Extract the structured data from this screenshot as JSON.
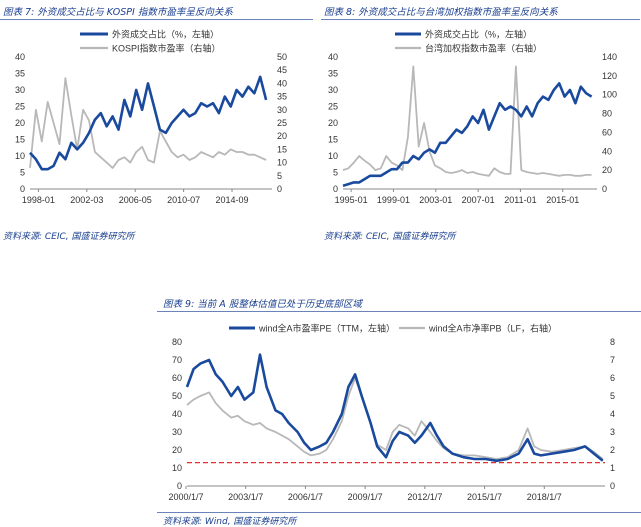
{
  "chart_data": [
    {
      "type": "line",
      "caption": "图表 7:  外资成交占比与 KOSPI 指数市盈率呈反向关系",
      "source": "资料来源:  CEIC,  国盛证券研究所",
      "xlabel": "",
      "ylabel": "",
      "x_ticks": [
        "1998-01",
        "2002-03",
        "2006-05",
        "2010-07",
        "2014-09"
      ],
      "x_range": [
        1998.0,
        2018.5
      ],
      "y_left_ticks": [
        "0",
        "5",
        "10",
        "15",
        "20",
        "25",
        "30",
        "35",
        "40"
      ],
      "y_left_range": [
        0,
        40
      ],
      "y_right_ticks": [
        "0",
        "5",
        "10",
        "15",
        "20",
        "25",
        "30",
        "35",
        "40",
        "45",
        "50"
      ],
      "y_right_range": [
        0,
        50
      ],
      "legend_position": "top-center",
      "series": [
        {
          "name": "外资成交占比（%，左轴）",
          "axis": "left",
          "color": "#1a4a9e",
          "x": [
            1998.0,
            1998.5,
            1999.0,
            1999.5,
            2000.0,
            2000.5,
            2001.0,
            2001.5,
            2002.0,
            2002.5,
            2003.0,
            2003.5,
            2004.0,
            2004.5,
            2005.0,
            2005.5,
            2006.0,
            2006.5,
            2007.0,
            2007.5,
            2008.0,
            2008.5,
            2009.0,
            2009.5,
            2010.0,
            2010.5,
            2011.0,
            2011.5,
            2012.0,
            2012.5,
            2013.0,
            2013.5,
            2014.0,
            2014.5,
            2015.0,
            2015.5,
            2016.0,
            2016.5,
            2017.0,
            2017.5,
            2018.0
          ],
          "y": [
            11,
            9,
            6,
            6,
            7,
            11,
            9,
            14,
            12,
            14,
            17,
            21,
            23,
            19,
            22,
            18,
            27,
            22,
            30,
            24,
            32,
            25,
            18,
            17,
            20,
            22,
            24,
            22,
            23,
            26,
            25,
            26,
            23,
            28,
            25,
            30,
            28,
            31,
            29,
            34,
            27
          ]
        },
        {
          "name": "KOSPI指数市盈率（右轴）",
          "axis": "right",
          "color": "#b8b8b8",
          "x": [
            1998.0,
            1998.5,
            1999.0,
            1999.5,
            2000.0,
            2000.5,
            2001.0,
            2001.5,
            2002.0,
            2002.5,
            2003.0,
            2003.5,
            2004.0,
            2004.5,
            2005.0,
            2005.5,
            2006.0,
            2006.5,
            2007.0,
            2007.5,
            2008.0,
            2008.5,
            2009.0,
            2009.5,
            2010.0,
            2010.5,
            2011.0,
            2011.5,
            2012.0,
            2012.5,
            2013.0,
            2013.5,
            2014.0,
            2014.5,
            2015.0,
            2015.5,
            2016.0,
            2016.5,
            2017.0,
            2017.5,
            2018.0
          ],
          "y": [
            8,
            30,
            18,
            33,
            25,
            17,
            42,
            28,
            15,
            30,
            26,
            14,
            12,
            10,
            8,
            11,
            12,
            10,
            14,
            16,
            11,
            10,
            22,
            18,
            14,
            12,
            13,
            11,
            12,
            14,
            13,
            12,
            14,
            13,
            15,
            14,
            14,
            13,
            13,
            12,
            11
          ]
        }
      ]
    },
    {
      "type": "line",
      "caption": "图表 8:  外资成交占比与台湾加权指数市盈率呈反向关系",
      "source": "资料来源:  CEIC,  国盛证券研究所",
      "xlabel": "",
      "ylabel": "",
      "x_ticks": [
        "1995-01",
        "1999-01",
        "2003-01",
        "2007-01",
        "2011-01",
        "2015-01"
      ],
      "x_range": [
        1995.0,
        2018.5
      ],
      "y_left_ticks": [
        "0",
        "5",
        "10",
        "15",
        "20",
        "25",
        "30",
        "35",
        "40"
      ],
      "y_left_range": [
        0,
        40
      ],
      "y_right_ticks": [
        "0",
        "20",
        "40",
        "60",
        "80",
        "100",
        "120",
        "140"
      ],
      "y_right_range": [
        0,
        140
      ],
      "legend_position": "top-center",
      "series": [
        {
          "name": "外资成交占比（%，左轴）",
          "axis": "left",
          "color": "#1a4a9e",
          "x": [
            1995.0,
            1995.5,
            1996.0,
            1996.5,
            1997.0,
            1997.5,
            1998.0,
            1998.5,
            1999.0,
            1999.5,
            2000.0,
            2000.5,
            2001.0,
            2001.5,
            2002.0,
            2002.5,
            2003.0,
            2003.5,
            2004.0,
            2004.5,
            2005.0,
            2005.5,
            2006.0,
            2006.5,
            2007.0,
            2007.5,
            2008.0,
            2008.5,
            2009.0,
            2009.5,
            2010.0,
            2010.5,
            2011.0,
            2011.5,
            2012.0,
            2012.5,
            2013.0,
            2013.5,
            2014.0,
            2014.5,
            2015.0,
            2015.5,
            2016.0,
            2016.5,
            2017.0,
            2017.5,
            2018.0
          ],
          "y": [
            1,
            1.5,
            2,
            2,
            3,
            4,
            4,
            4,
            5,
            6,
            6,
            8,
            8,
            10,
            9,
            11,
            12,
            11,
            14,
            14,
            16,
            18,
            17,
            19,
            22,
            20,
            24,
            18,
            22,
            26,
            24,
            25,
            24,
            22,
            25,
            22,
            26,
            28,
            27,
            30,
            32,
            28,
            30,
            26,
            31,
            29,
            28
          ]
        },
        {
          "name": "台湾加权指数市盈率（右轴）",
          "axis": "right",
          "color": "#b8b8b8",
          "x": [
            1995.0,
            1995.5,
            1996.0,
            1996.5,
            1997.0,
            1997.5,
            1998.0,
            1998.5,
            1999.0,
            1999.5,
            2000.0,
            2000.5,
            2001.0,
            2001.5,
            2002.0,
            2002.5,
            2003.0,
            2003.5,
            2004.0,
            2004.5,
            2005.0,
            2005.5,
            2006.0,
            2006.5,
            2007.0,
            2007.5,
            2008.0,
            2008.5,
            2009.0,
            2009.5,
            2010.0,
            2010.5,
            2011.0,
            2011.5,
            2012.0,
            2012.5,
            2013.0,
            2013.5,
            2014.0,
            2014.5,
            2015.0,
            2015.5,
            2016.0,
            2016.5,
            2017.0,
            2017.5,
            2018.0
          ],
          "y": [
            20,
            22,
            28,
            35,
            30,
            26,
            20,
            22,
            35,
            28,
            25,
            20,
            55,
            130,
            45,
            70,
            40,
            25,
            22,
            18,
            17,
            18,
            20,
            17,
            18,
            16,
            15,
            14,
            22,
            18,
            16,
            16,
            130,
            20,
            18,
            17,
            16,
            17,
            16,
            15,
            14,
            15,
            15,
            14,
            14,
            15,
            15
          ]
        }
      ]
    },
    {
      "type": "line",
      "caption": "图表 9:  当前 A 股整体估值已处于历史底部区域",
      "source": "资料来源:  Wind,  国盛证券研究所",
      "xlabel": "",
      "ylabel": "",
      "x_ticks": [
        "2000/1/7",
        "2003/1/7",
        "2006/1/7",
        "2009/1/7",
        "2012/1/7",
        "2015/1/7",
        "2018/1/7"
      ],
      "x_range": [
        2000.0,
        2018.9
      ],
      "y_left_ticks": [
        "0",
        "10",
        "20",
        "30",
        "40",
        "50",
        "60",
        "70",
        "80"
      ],
      "y_left_range": [
        0,
        80
      ],
      "y_right_ticks": [
        "0",
        "1",
        "2",
        "3",
        "4",
        "5",
        "6",
        "7",
        "8"
      ],
      "y_right_range": [
        0,
        8
      ],
      "reference_line": {
        "axis": "left",
        "y": 13,
        "color": "#e03030",
        "style": "dashed"
      },
      "legend_position": "top-center",
      "series": [
        {
          "name": "wind全A市盈率PE（TTM，左轴）",
          "axis": "left",
          "color": "#1a4a9e",
          "x": [
            2000.0,
            2000.3,
            2000.6,
            2001.0,
            2001.3,
            2001.6,
            2002.0,
            2002.3,
            2002.6,
            2003.0,
            2003.3,
            2003.6,
            2004.0,
            2004.3,
            2004.6,
            2005.0,
            2005.3,
            2005.6,
            2006.0,
            2006.3,
            2006.6,
            2007.0,
            2007.3,
            2007.6,
            2007.9,
            2008.3,
            2008.6,
            2009.0,
            2009.3,
            2009.6,
            2010.0,
            2010.3,
            2010.6,
            2011.0,
            2011.3,
            2011.6,
            2012.0,
            2012.5,
            2013.0,
            2013.5,
            2014.0,
            2014.5,
            2015.0,
            2015.4,
            2015.7,
            2016.0,
            2016.5,
            2017.0,
            2017.5,
            2018.0,
            2018.4,
            2018.8
          ],
          "y": [
            55,
            65,
            68,
            70,
            62,
            58,
            50,
            55,
            48,
            52,
            73,
            55,
            42,
            40,
            35,
            30,
            24,
            20,
            22,
            24,
            30,
            40,
            55,
            62,
            50,
            35,
            22,
            16,
            25,
            30,
            28,
            24,
            28,
            35,
            28,
            22,
            18,
            16,
            15,
            15,
            14,
            15,
            18,
            26,
            18,
            17,
            18,
            19,
            20,
            22,
            18,
            14
          ]
        },
        {
          "name": "wind全A市净率PB（LF，右轴）",
          "axis": "right",
          "color": "#b8b8b8",
          "x": [
            2000.0,
            2000.3,
            2000.6,
            2001.0,
            2001.3,
            2001.6,
            2002.0,
            2002.3,
            2002.6,
            2003.0,
            2003.3,
            2003.6,
            2004.0,
            2004.3,
            2004.6,
            2005.0,
            2005.3,
            2005.6,
            2006.0,
            2006.3,
            2006.6,
            2007.0,
            2007.3,
            2007.6,
            2007.9,
            2008.3,
            2008.6,
            2009.0,
            2009.3,
            2009.6,
            2010.0,
            2010.3,
            2010.6,
            2011.0,
            2011.3,
            2011.6,
            2012.0,
            2012.5,
            2013.0,
            2013.5,
            2014.0,
            2014.5,
            2015.0,
            2015.4,
            2015.7,
            2016.0,
            2016.5,
            2017.0,
            2017.5,
            2018.0,
            2018.4,
            2018.8
          ],
          "y": [
            4.5,
            4.8,
            5.0,
            5.2,
            4.6,
            4.2,
            3.8,
            3.9,
            3.6,
            3.4,
            3.5,
            3.2,
            3.0,
            2.8,
            2.6,
            2.2,
            1.9,
            1.7,
            1.8,
            2.0,
            2.6,
            3.6,
            5.0,
            6.0,
            5.0,
            3.5,
            2.3,
            2.0,
            3.0,
            3.4,
            3.2,
            2.8,
            3.6,
            3.0,
            2.5,
            2.1,
            1.8,
            1.7,
            1.7,
            1.6,
            1.5,
            1.6,
            2.0,
            3.2,
            2.2,
            2.0,
            1.9,
            2.0,
            2.1,
            2.2,
            1.9,
            1.5
          ]
        }
      ]
    }
  ]
}
